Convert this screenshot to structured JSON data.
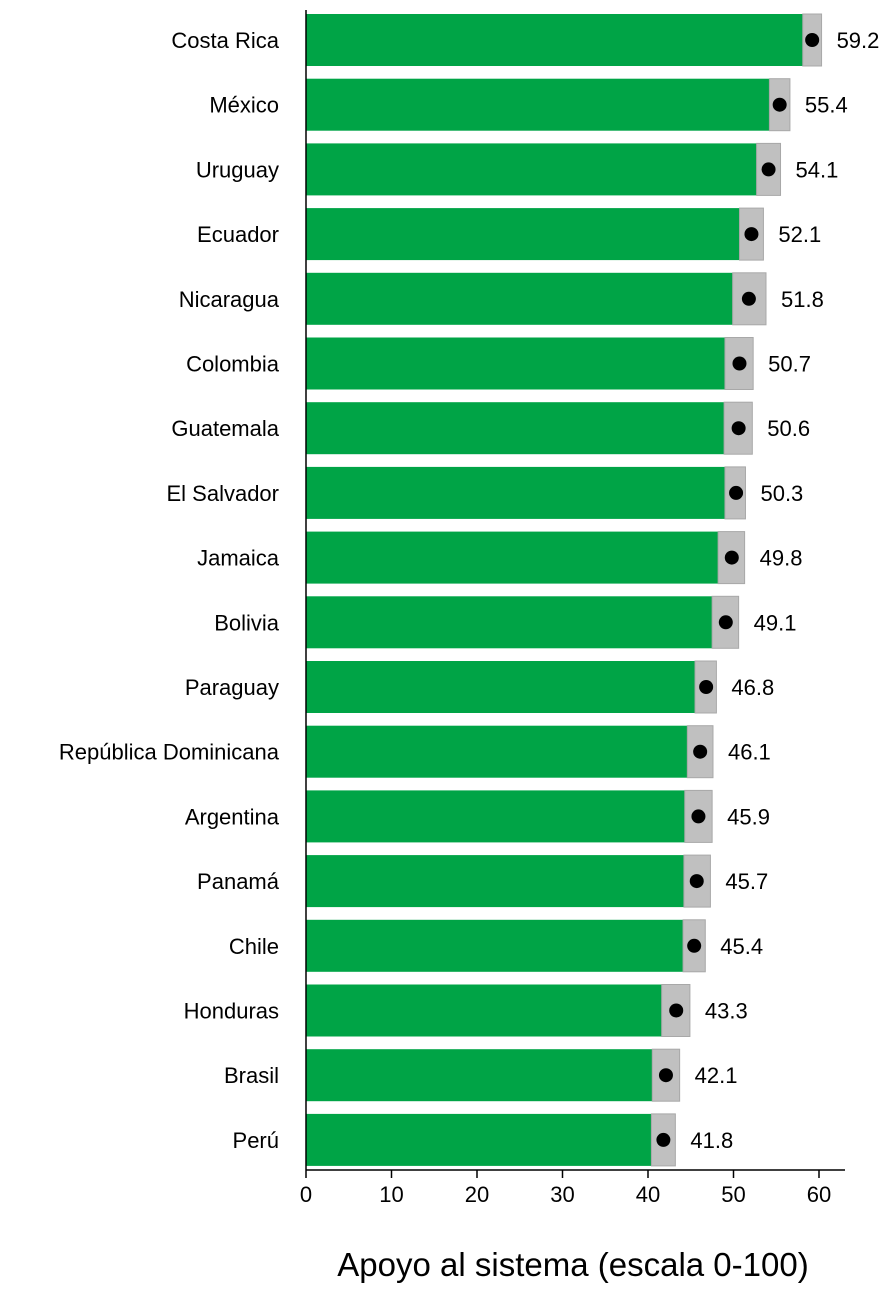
{
  "chart_data": {
    "type": "bar",
    "orientation": "horizontal",
    "title": "",
    "xlabel": "Apoyo al sistema (escala 0-100)",
    "ylabel": "",
    "xlim": [
      0,
      63
    ],
    "xticks": [
      0,
      10,
      20,
      30,
      40,
      50,
      60
    ],
    "grid": false,
    "categories": [
      "Costa Rica",
      "México",
      "Uruguay",
      "Ecuador",
      "Nicaragua",
      "Colombia",
      "Guatemala",
      "El Salvador",
      "Jamaica",
      "Bolivia",
      "Paraguay",
      "República Dominicana",
      "Argentina",
      "Panamá",
      "Chile",
      "Honduras",
      "Brasil",
      "Perú"
    ],
    "values": [
      59.2,
      55.4,
      54.1,
      52.1,
      51.8,
      50.7,
      50.6,
      50.3,
      49.8,
      49.1,
      46.8,
      46.1,
      45.9,
      45.7,
      45.4,
      43.3,
      42.1,
      41.8
    ],
    "value_labels": [
      "59.2",
      "55.4",
      "54.1",
      "52.1",
      "51.8",
      "50.7",
      "50.6",
      "50.3",
      "49.8",
      "49.1",
      "46.8",
      "46.1",
      "45.9",
      "45.7",
      "45.4",
      "43.3",
      "42.1",
      "41.8"
    ],
    "ci_low": [
      58.1,
      54.2,
      52.7,
      50.7,
      49.9,
      49.0,
      48.9,
      49.0,
      48.2,
      47.5,
      45.5,
      44.6,
      44.3,
      44.2,
      44.1,
      41.6,
      40.5,
      40.4
    ],
    "ci_high": [
      60.3,
      56.6,
      55.5,
      53.5,
      53.8,
      52.3,
      52.2,
      51.4,
      51.3,
      50.6,
      48.0,
      47.6,
      47.5,
      47.3,
      46.7,
      44.9,
      43.7,
      43.2
    ],
    "colors": {
      "bar": "#00a446",
      "ci": "#c0c0c0",
      "ci_border": "#a8a8a8",
      "point": "#000000",
      "axis": "#000000"
    }
  }
}
